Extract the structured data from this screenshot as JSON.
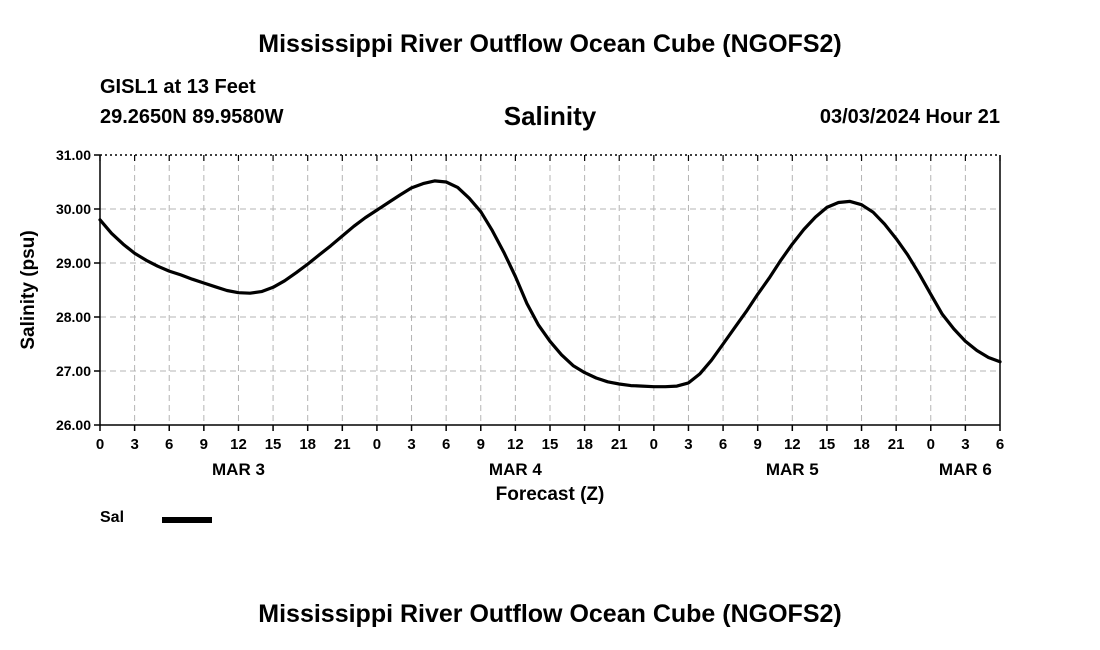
{
  "page": {
    "title": "Mississippi River Outflow Ocean Cube (NGOFS2)",
    "title_repeat": "Mississippi River Outflow Ocean Cube (NGOFS2)",
    "station": "GISL1 at 13 Feet",
    "coordinates": "29.2650N  89.9580W",
    "date_time": "03/03/2024 Hour 21"
  },
  "chart_data": {
    "type": "line",
    "title": "Salinity",
    "xlabel": "Forecast (Z)",
    "ylabel": "Salinity (psu)",
    "xlim": [
      0,
      78
    ],
    "ylim": [
      26.0,
      31.0
    ],
    "grid": true,
    "x_unit": "hours since MAR 3 00Z",
    "x_ticks": [
      0,
      3,
      6,
      9,
      12,
      15,
      18,
      21,
      24,
      27,
      30,
      33,
      36,
      39,
      42,
      45,
      48,
      51,
      54,
      57,
      60,
      63,
      66,
      69,
      72,
      75,
      78
    ],
    "x_tick_labels": [
      "0",
      "3",
      "6",
      "9",
      "12",
      "15",
      "18",
      "21",
      "0",
      "3",
      "6",
      "9",
      "12",
      "15",
      "18",
      "21",
      "0",
      "3",
      "6",
      "9",
      "12",
      "15",
      "18",
      "21",
      "0",
      "3",
      "6"
    ],
    "date_labels": [
      {
        "label": "MAR 3",
        "x": 12
      },
      {
        "label": "MAR 4",
        "x": 36
      },
      {
        "label": "MAR 5",
        "x": 60
      },
      {
        "label": "MAR 6",
        "x": 75
      }
    ],
    "y_ticks": [
      26.0,
      27.0,
      28.0,
      29.0,
      30.0,
      31.0
    ],
    "y_tick_labels": [
      "26.00",
      "27.00",
      "28.00",
      "29.00",
      "30.00",
      "31.00"
    ],
    "legend": {
      "position": "bottom-left",
      "entries": [
        "Sal"
      ]
    },
    "series": [
      {
        "name": "Sal",
        "color": "#000000",
        "x": [
          0,
          1,
          2,
          3,
          4,
          5,
          6,
          7,
          8,
          9,
          10,
          11,
          12,
          13,
          14,
          15,
          16,
          17,
          18,
          19,
          20,
          21,
          22,
          23,
          24,
          25,
          26,
          27,
          28,
          29,
          30,
          31,
          32,
          33,
          34,
          35,
          36,
          37,
          38,
          39,
          40,
          41,
          42,
          43,
          44,
          45,
          46,
          47,
          48,
          49,
          50,
          51,
          52,
          53,
          54,
          55,
          56,
          57,
          58,
          59,
          60,
          61,
          62,
          63,
          64,
          65,
          66,
          67,
          68,
          69,
          70,
          71,
          72,
          73,
          74,
          75,
          76,
          77,
          78
        ],
        "values": [
          29.8,
          29.55,
          29.35,
          29.18,
          29.05,
          28.94,
          28.85,
          28.78,
          28.7,
          28.63,
          28.56,
          28.49,
          28.45,
          28.44,
          28.47,
          28.55,
          28.67,
          28.82,
          28.98,
          29.15,
          29.32,
          29.5,
          29.68,
          29.84,
          29.98,
          30.12,
          30.26,
          30.39,
          30.47,
          30.52,
          30.5,
          30.4,
          30.2,
          29.95,
          29.6,
          29.2,
          28.75,
          28.25,
          27.85,
          27.55,
          27.3,
          27.1,
          26.97,
          26.87,
          26.8,
          26.76,
          26.73,
          26.72,
          26.71,
          26.71,
          26.72,
          26.78,
          26.95,
          27.2,
          27.5,
          27.8,
          28.1,
          28.42,
          28.72,
          29.05,
          29.35,
          29.62,
          29.85,
          30.03,
          30.12,
          30.14,
          30.08,
          29.94,
          29.72,
          29.45,
          29.15,
          28.8,
          28.42,
          28.05,
          27.78,
          27.55,
          27.38,
          27.25,
          27.17
        ]
      }
    ]
  }
}
